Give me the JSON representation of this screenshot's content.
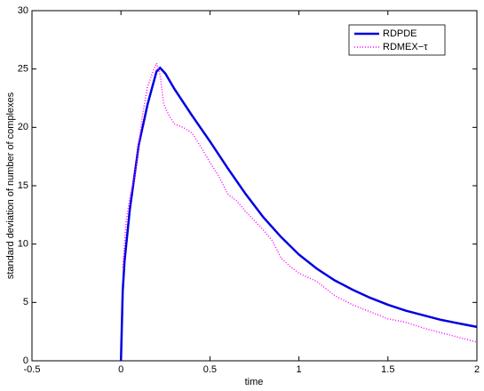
{
  "chart_data": {
    "type": "line",
    "xlabel": "time",
    "ylabel": "standard deviation of number of complexes",
    "xlim": [
      -0.5,
      2
    ],
    "ylim": [
      0,
      30
    ],
    "xticks": [
      -0.5,
      0,
      0.5,
      1,
      1.5,
      2
    ],
    "yticks": [
      0,
      5,
      10,
      15,
      20,
      25,
      30
    ],
    "legend": "upper right",
    "series": [
      {
        "name": "RDPDE",
        "color": "#0000e0",
        "style": "solid",
        "x": [
          0,
          0.01,
          0.02,
          0.05,
          0.1,
          0.15,
          0.2,
          0.22,
          0.25,
          0.3,
          0.4,
          0.5,
          0.6,
          0.7,
          0.8,
          0.9,
          1.0,
          1.1,
          1.2,
          1.3,
          1.4,
          1.5,
          1.6,
          1.7,
          1.8,
          1.9,
          2.0
        ],
        "values": [
          0,
          6,
          8.5,
          13,
          18.5,
          22,
          24.8,
          25.1,
          24.6,
          23.3,
          21,
          18.8,
          16.5,
          14.3,
          12.3,
          10.6,
          9.1,
          7.9,
          6.9,
          6.1,
          5.4,
          4.8,
          4.3,
          3.9,
          3.5,
          3.2,
          2.9
        ]
      },
      {
        "name": "RDMEX−τ",
        "color": "#ff00ff",
        "style": "dotted",
        "x": [
          0.01,
          0.02,
          0.03,
          0.05,
          0.08,
          0.1,
          0.12,
          0.15,
          0.18,
          0.2,
          0.22,
          0.24,
          0.27,
          0.3,
          0.35,
          0.4,
          0.45,
          0.5,
          0.55,
          0.6,
          0.65,
          0.7,
          0.75,
          0.8,
          0.85,
          0.9,
          0.95,
          1.0,
          1.1,
          1.2,
          1.3,
          1.4,
          1.5,
          1.6,
          1.7,
          1.8,
          1.9,
          2.0
        ],
        "values": [
          8,
          10,
          12,
          14,
          16,
          18.5,
          21,
          23.5,
          24.8,
          25.5,
          24.5,
          22,
          21,
          20.3,
          20,
          19.5,
          18.3,
          17,
          15.8,
          14.3,
          13.7,
          12.8,
          12,
          11.2,
          10.3,
          8.8,
          8.1,
          7.5,
          6.8,
          5.6,
          4.8,
          4.2,
          3.6,
          3.3,
          2.8,
          2.4,
          2.0,
          1.6
        ]
      }
    ]
  }
}
